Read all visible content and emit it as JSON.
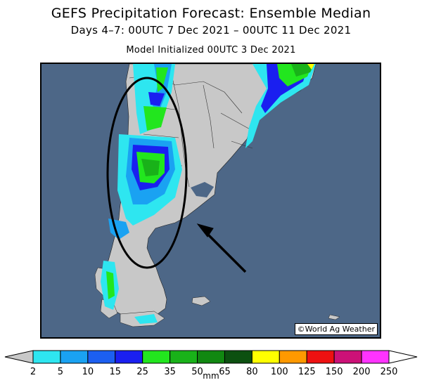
{
  "header": {
    "title": "GEFS Precipitation Forecast: Ensemble Median",
    "period": "Days 4–7: 00UTC 7 Dec 2021 – 00UTC 11 Dec 2021",
    "init": "Model Initialized 00UTC 3 Dec 2021"
  },
  "map": {
    "credit": "©World Ag Weather",
    "ocean_color": "#4d6787",
    "land_color": "#c8c8c8",
    "annotation_circle_color": "#000000",
    "arrow_icon": "arrow-icon"
  },
  "colorbar": {
    "unit": "mm",
    "ticks": [
      "2",
      "5",
      "10",
      "15",
      "25",
      "35",
      "50",
      "65",
      "80",
      "100",
      "125",
      "150",
      "200",
      "250"
    ],
    "colors": [
      "#2ee6f0",
      "#1aa2f2",
      "#1c5ff0",
      "#1a1ff0",
      "#22e61e",
      "#19b219",
      "#118811",
      "#0c5010",
      "#ffff00",
      "#ff9900",
      "#ee1111",
      "#cc1177",
      "#ff33ff",
      "#aa55cc"
    ]
  }
}
